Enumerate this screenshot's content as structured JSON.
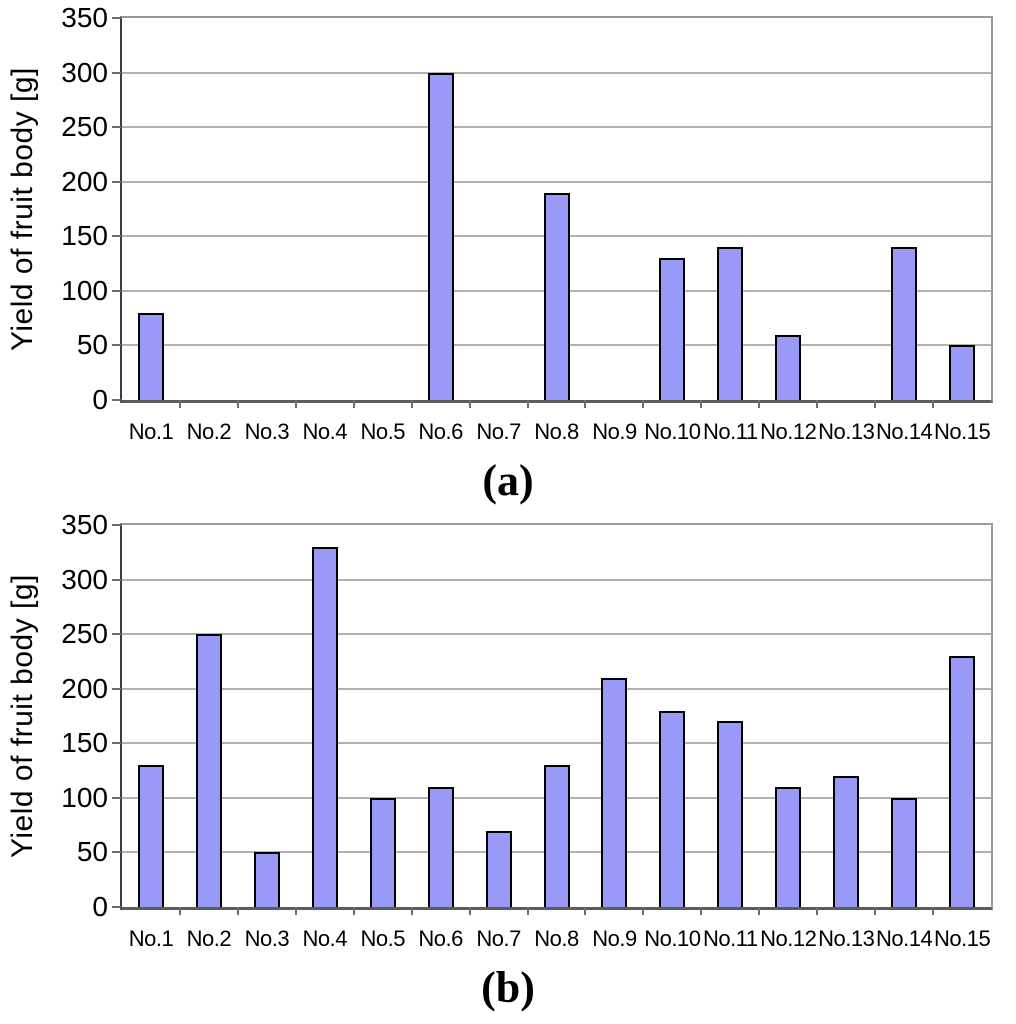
{
  "figure": {
    "bar_fill": "#9999F8",
    "bar_border": "#000000",
    "gridline_color": "#b2b2b2",
    "plot_border_color": "#9a9a9a",
    "axis_color": "#5c5c5c"
  },
  "chart_data": [
    {
      "type": "bar",
      "panel_label": "(a)",
      "ylabel": "Yield of fruit body [g]",
      "xlabel": "",
      "categories": [
        "No.1",
        "No.2",
        "No.3",
        "No.4",
        "No.5",
        "No.6",
        "No.7",
        "No.8",
        "No.9",
        "No.10",
        "No.11",
        "No.12",
        "No.13",
        "No.14",
        "No.15"
      ],
      "values": [
        80,
        0,
        0,
        0,
        0,
        300,
        0,
        190,
        0,
        130,
        140,
        60,
        0,
        140,
        50
      ],
      "ylim": [
        0,
        350
      ],
      "yticks": [
        0,
        50,
        100,
        150,
        200,
        250,
        300,
        350
      ],
      "grid": "horizontal",
      "legend": "none"
    },
    {
      "type": "bar",
      "panel_label": "(b)",
      "ylabel": "Yield of fruit body [g]",
      "xlabel": "",
      "categories": [
        "No.1",
        "No.2",
        "No.3",
        "No.4",
        "No.5",
        "No.6",
        "No.7",
        "No.8",
        "No.9",
        "No.10",
        "No.11",
        "No.12",
        "No.13",
        "No.14",
        "No.15"
      ],
      "values": [
        130,
        250,
        50,
        330,
        100,
        110,
        70,
        130,
        210,
        180,
        170,
        110,
        120,
        100,
        230
      ],
      "ylim": [
        0,
        350
      ],
      "yticks": [
        0,
        50,
        100,
        150,
        200,
        250,
        300,
        350
      ],
      "grid": "horizontal",
      "legend": "none"
    }
  ]
}
